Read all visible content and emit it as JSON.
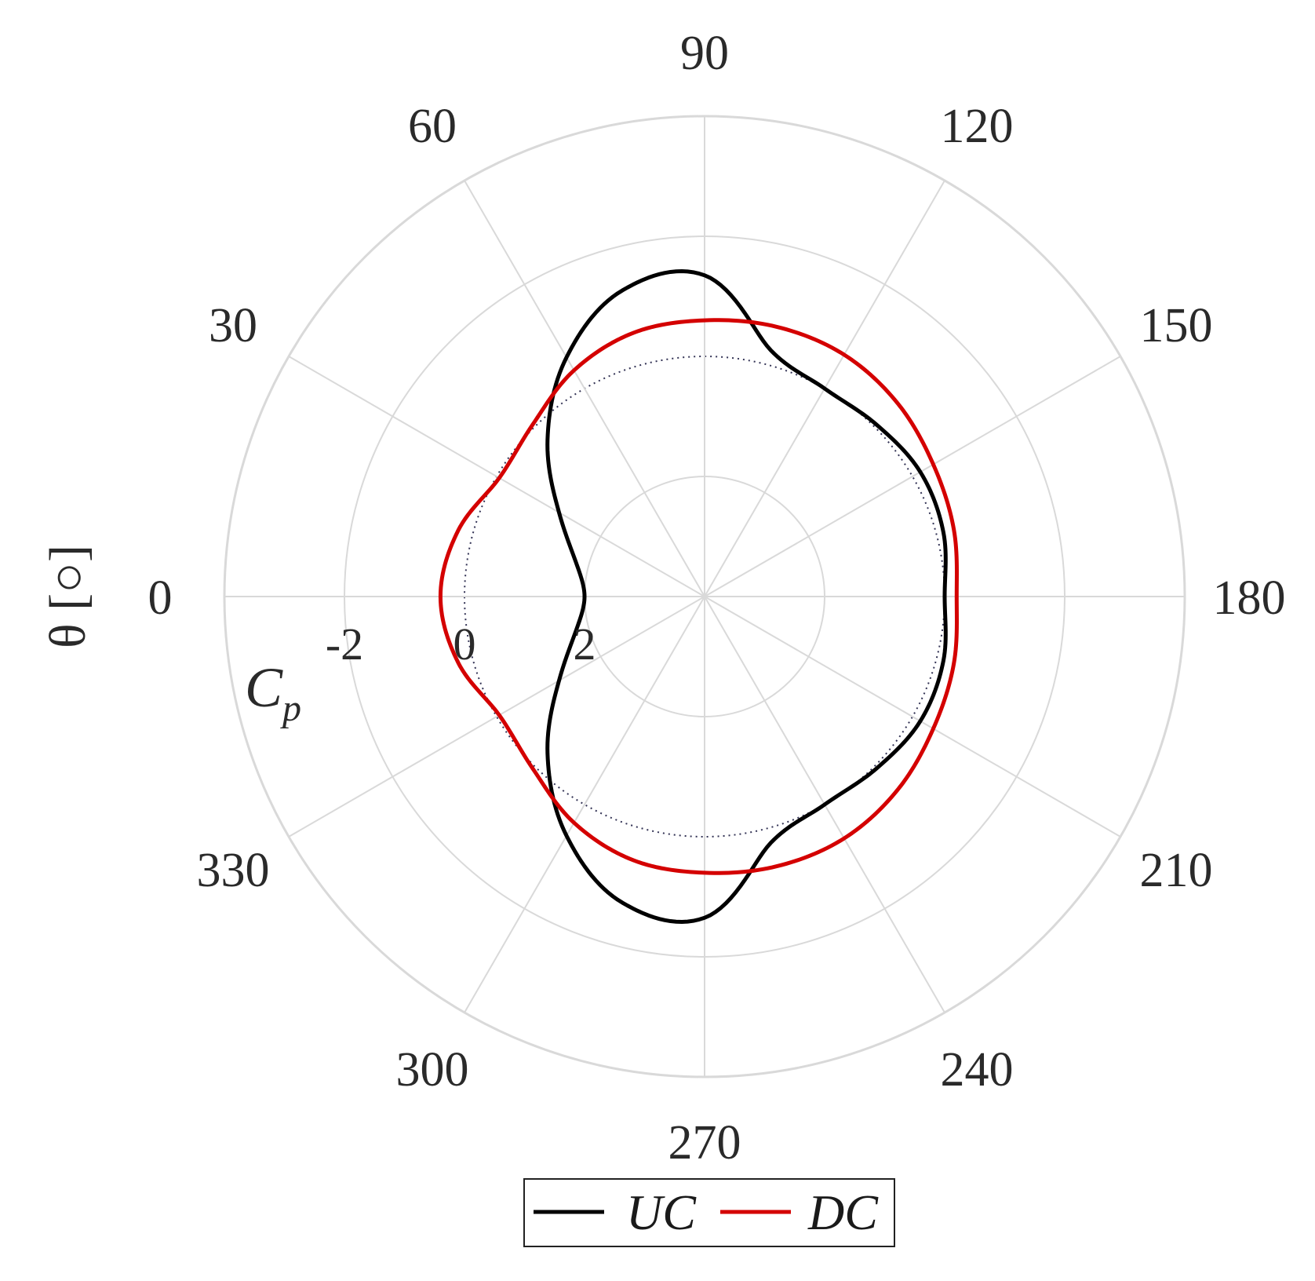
{
  "chart_data": {
    "type": "line",
    "polar": true,
    "ylabel": "θ [○]",
    "r_axis_title": {
      "main": "C",
      "sub": "p"
    },
    "angle_ticks": [
      "0",
      "30",
      "60",
      "90",
      "120",
      "150",
      "180",
      "210",
      "240",
      "270",
      "300",
      "330"
    ],
    "angle_tick_values": [
      0,
      30,
      60,
      90,
      120,
      150,
      180,
      210,
      240,
      270,
      300,
      330
    ],
    "angle_direction": "clockwise",
    "angle_zero_location": "left",
    "r_ticks": [
      "2",
      "0",
      "-2"
    ],
    "r_tick_values": [
      2,
      0,
      -2
    ],
    "r_direction": "reversed",
    "rlim": [
      -4,
      4
    ],
    "reference_ring": 0,
    "grid": true,
    "legend_position": "bottom-center",
    "colors": {
      "UC": "#000000",
      "DC": "#d40000",
      "grid": "#d9d9d9",
      "reference": "#333355"
    },
    "series": [
      {
        "name": "UC",
        "theta": [
          0,
          15,
          30,
          45,
          60,
          75,
          90,
          105,
          120,
          135,
          150,
          165,
          180,
          195,
          210,
          225,
          240,
          255,
          270,
          285,
          300,
          315,
          330,
          345,
          360
        ],
        "values": [
          2.0,
          1.78,
          1.2,
          0.3,
          -0.6,
          -1.28,
          -1.35,
          -0.25,
          0.0,
          -0.05,
          -0.15,
          -0.12,
          0.0,
          -0.12,
          -0.15,
          -0.05,
          0.0,
          -0.25,
          -1.35,
          -1.28,
          -0.6,
          0.3,
          1.2,
          1.78,
          2.0
        ]
      },
      {
        "name": "DC",
        "theta": [
          0,
          15,
          30,
          45,
          60,
          75,
          90,
          105,
          120,
          135,
          150,
          165,
          180,
          195,
          210,
          225,
          240,
          255,
          270,
          285,
          300,
          315,
          330,
          345,
          360
        ],
        "values": [
          -0.4,
          -0.25,
          0.05,
          -0.05,
          -0.35,
          -0.55,
          -0.6,
          -0.65,
          -0.65,
          -0.55,
          -0.4,
          -0.3,
          -0.2,
          -0.3,
          -0.4,
          -0.55,
          -0.65,
          -0.65,
          -0.6,
          -0.55,
          -0.35,
          -0.05,
          0.05,
          -0.25,
          -0.4
        ]
      }
    ]
  }
}
